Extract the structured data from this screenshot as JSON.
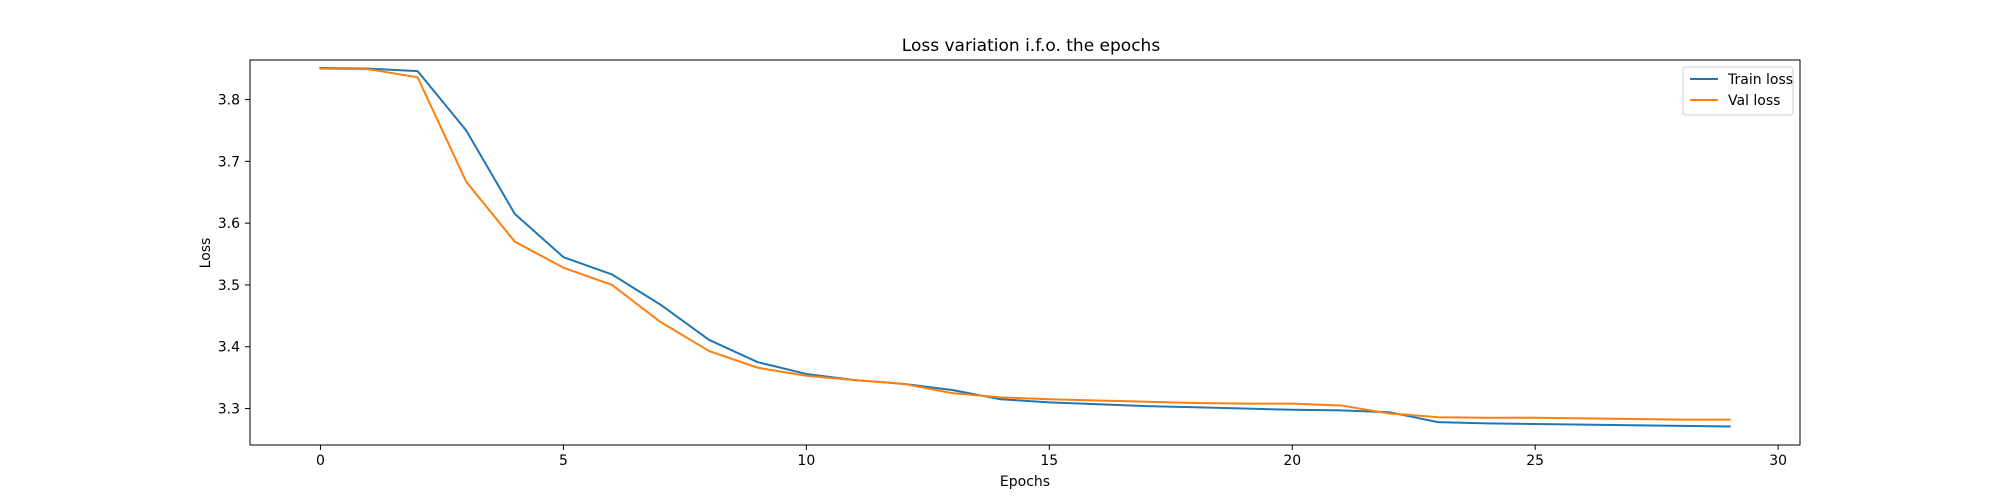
{
  "chart_data": {
    "type": "line",
    "title": "Loss variation i.f.o. the epochs",
    "xlabel": "Epochs",
    "ylabel": "Loss",
    "xlim": [
      -1.45,
      30.45
    ],
    "ylim": [
      3.241,
      3.864
    ],
    "xticks": [
      0,
      5,
      10,
      15,
      20,
      25,
      30
    ],
    "yticks": [
      3.3,
      3.4,
      3.5,
      3.6,
      3.7,
      3.8
    ],
    "grid": false,
    "legend_position": "top-right",
    "x": [
      0,
      1,
      2,
      3,
      4,
      5,
      6,
      7,
      8,
      9,
      10,
      11,
      12,
      13,
      14,
      15,
      16,
      17,
      18,
      19,
      20,
      21,
      22,
      23,
      24,
      25,
      26,
      27,
      28,
      29
    ],
    "series": [
      {
        "name": "Train loss",
        "color": "#1f77b4",
        "values": [
          3.851,
          3.85,
          3.846,
          3.75,
          3.615,
          3.545,
          3.517,
          3.468,
          3.411,
          3.375,
          3.356,
          3.346,
          3.34,
          3.33,
          3.315,
          3.31,
          3.307,
          3.304,
          3.302,
          3.3,
          3.298,
          3.297,
          3.294,
          3.278,
          3.276,
          3.275,
          3.274,
          3.273,
          3.272,
          3.271
        ]
      },
      {
        "name": "Val loss",
        "color": "#ff7f0e",
        "values": [
          3.85,
          3.849,
          3.836,
          3.667,
          3.57,
          3.528,
          3.5,
          3.44,
          3.393,
          3.366,
          3.353,
          3.346,
          3.34,
          3.325,
          3.318,
          3.315,
          3.313,
          3.311,
          3.309,
          3.308,
          3.308,
          3.305,
          3.292,
          3.286,
          3.285,
          3.285,
          3.284,
          3.283,
          3.282,
          3.282
        ]
      }
    ]
  }
}
